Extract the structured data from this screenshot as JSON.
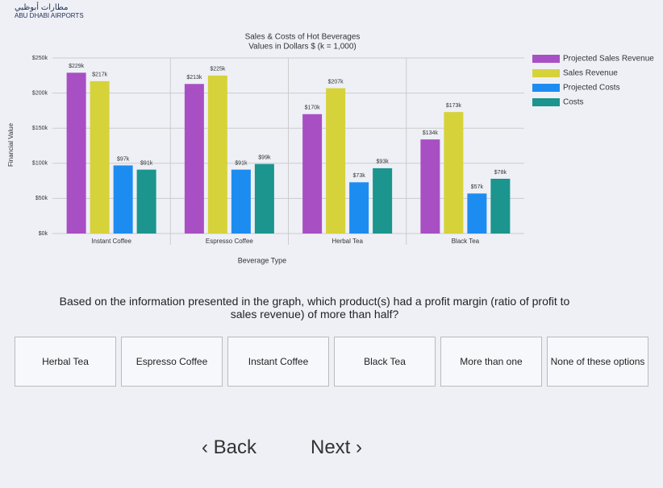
{
  "logo": {
    "arabic": "مطارات أبوظبي",
    "english": "ABU DHABI AIRPORTS"
  },
  "chart_data": {
    "type": "bar",
    "title": "Sales & Costs of Hot Beverages",
    "subtitle": "Values in Dollars $ (k = 1,000)",
    "xlabel": "Beverage Type",
    "ylabel": "Financial Value",
    "categories": [
      "Instant Coffee",
      "Espresso Coffee",
      "Herbal Tea",
      "Black Tea"
    ],
    "series": [
      {
        "name": "Projected Sales Revenue",
        "color": "#a84fc4",
        "values": [
          229,
          213,
          170,
          134
        ],
        "value_labels": [
          "$229k",
          "$213k",
          "$170k",
          "$134k"
        ]
      },
      {
        "name": "Sales Revenue",
        "color": "#d6d23a",
        "values": [
          217,
          225,
          207,
          173
        ],
        "value_labels": [
          "$217k",
          "$225k",
          "$207k",
          "$173k"
        ]
      },
      {
        "name": "Projected Costs",
        "color": "#1d8cf0",
        "values": [
          97,
          91,
          73,
          57
        ],
        "value_labels": [
          "$97k",
          "$91k",
          "$73k",
          "$57k"
        ]
      },
      {
        "name": "Costs",
        "color": "#1b958d",
        "values": [
          91,
          99,
          93,
          78
        ],
        "value_labels": [
          "$91k",
          "$99k",
          "$93k",
          "$78k"
        ]
      }
    ],
    "ylim": [
      0,
      250
    ],
    "yticks": [
      {
        "value": 0,
        "label": "$0k"
      },
      {
        "value": 50,
        "label": "$50k"
      },
      {
        "value": 100,
        "label": "$100k"
      },
      {
        "value": 150,
        "label": "$150k"
      },
      {
        "value": 200,
        "label": "$200k"
      },
      {
        "value": 250,
        "label": "$250k"
      }
    ],
    "grid": true,
    "legend": "right"
  },
  "question": "Based on the information presented in the graph, which product(s) had a profit margin (ratio of profit to sales revenue) of more than half?",
  "options": [
    "Herbal Tea",
    "Espresso Coffee",
    "Instant Coffee",
    "Black Tea",
    "More than one",
    "None of these options"
  ],
  "nav": {
    "back": "Back",
    "next": "Next"
  }
}
